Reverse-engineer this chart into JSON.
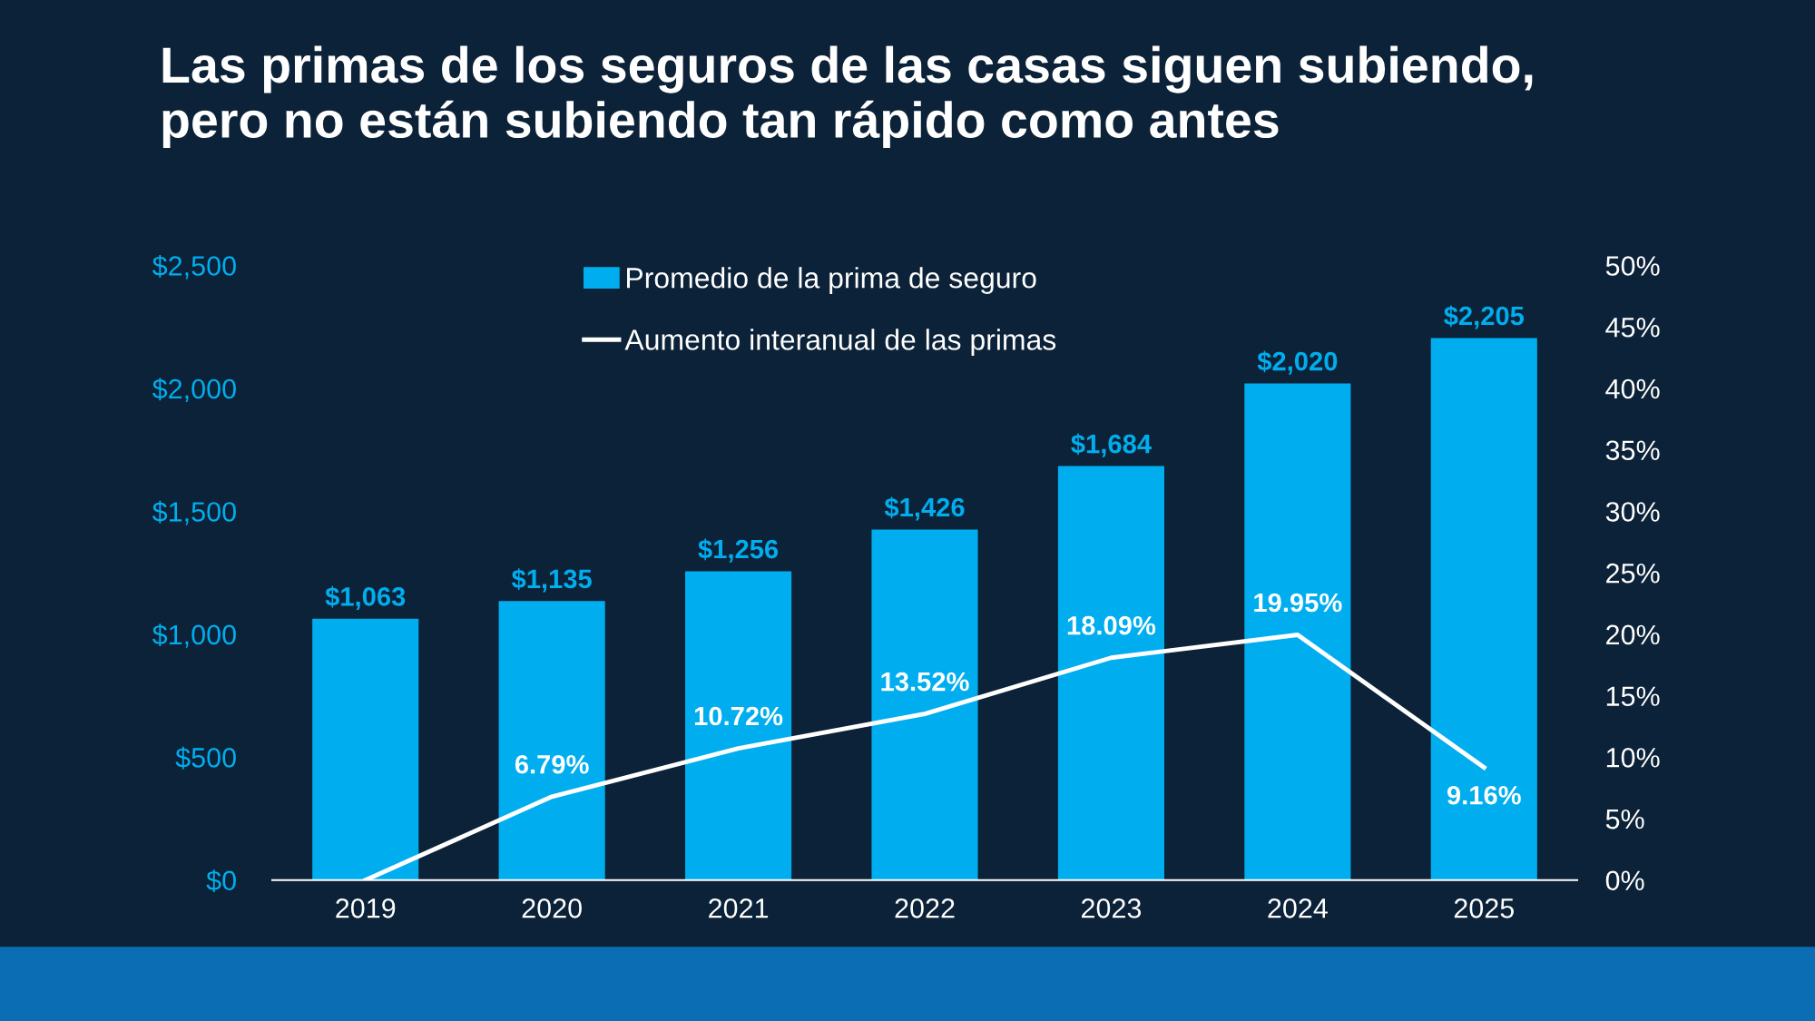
{
  "chart_data": {
    "type": "bar",
    "title": "Las primas de los seguros de las casas siguen subiendo,\npero no están subiendo tan rápido como antes",
    "categories": [
      "2019",
      "2020",
      "2021",
      "2022",
      "2023",
      "2024",
      "2025"
    ],
    "series": [
      {
        "name": "Promedio de la prima de seguro",
        "color": "#00aeef",
        "values": [
          1063,
          1135,
          1256,
          1426,
          1684,
          2020,
          2205
        ],
        "value_labels": [
          "$1,063",
          "$1,135",
          "$1,256",
          "$1,426",
          "$1,684",
          "$2,020",
          "$2,205"
        ]
      },
      {
        "name": "Aumento interanual de las primas",
        "type": "line",
        "axis": "y2",
        "color": "#ffffff",
        "values": [
          0,
          6.79,
          10.72,
          13.52,
          18.09,
          19.95,
          9.16
        ],
        "value_labels": [
          null,
          "6.79%",
          "10.72%",
          "13.52%",
          "18.09%",
          "19.95%",
          "9.16%"
        ]
      }
    ],
    "ylim": [
      0,
      2500
    ],
    "yticks": [
      {
        "value": 0,
        "label": "$0"
      },
      {
        "value": 500,
        "label": "$500"
      },
      {
        "value": 1000,
        "label": "$1,000"
      },
      {
        "value": 1500,
        "label": "$1,500"
      },
      {
        "value": 2000,
        "label": "$2,000"
      },
      {
        "value": 2500,
        "label": "$2,500"
      }
    ],
    "y2lim": [
      0,
      50
    ],
    "y2ticks": [
      {
        "value": 0,
        "label": "0%"
      },
      {
        "value": 5,
        "label": "5%"
      },
      {
        "value": 10,
        "label": "10%"
      },
      {
        "value": 15,
        "label": "15%"
      },
      {
        "value": 20,
        "label": "20%"
      },
      {
        "value": 25,
        "label": "25%"
      },
      {
        "value": 30,
        "label": "30%"
      },
      {
        "value": 35,
        "label": "35%"
      },
      {
        "value": 40,
        "label": "40%"
      },
      {
        "value": 45,
        "label": "45%"
      },
      {
        "value": 50,
        "label": "50%"
      }
    ],
    "grid": false,
    "legend": "top"
  }
}
